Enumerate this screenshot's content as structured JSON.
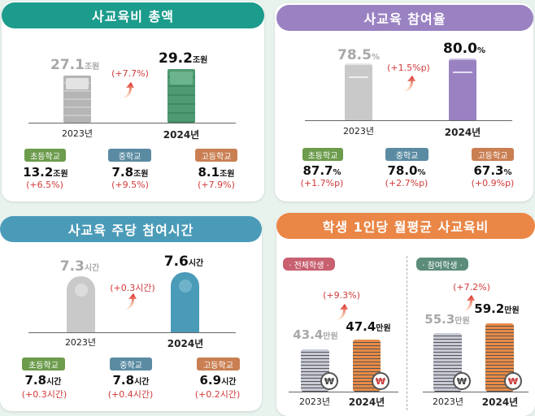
{
  "colors": {
    "teal": "#1c9c8c",
    "purple": "#9a82c2",
    "blue": "#4a9bb8",
    "orange": "#ea8646",
    "green_badge": "#6c9c4c",
    "blue_badge": "#5b8ba2",
    "orange_badge": "#c97f52",
    "red": "#d23a3a"
  },
  "total": {
    "title": "사교육비 총액",
    "y2023": {
      "value": "27.1",
      "unit": "조원",
      "year": "2023년",
      "icon": "money-bill-icon"
    },
    "y2024": {
      "value": "29.2",
      "unit": "조원",
      "year": "2024년",
      "icon": "money-bill-icon"
    },
    "change": "(+7.7%)",
    "schools": [
      {
        "label": "초등학교",
        "value": "13.2",
        "unit": "조원",
        "change": "(+6.5%)"
      },
      {
        "label": "중학교",
        "value": "7.8",
        "unit": "조원",
        "change": "(+9.5%)"
      },
      {
        "label": "고등학교",
        "value": "8.1",
        "unit": "조원",
        "change": "(+7.9%)"
      }
    ]
  },
  "rate": {
    "title": "사교육 참여율",
    "y2023": {
      "value": "78.5",
      "unit": "%",
      "year": "2023년",
      "icon": "notebook-icon"
    },
    "y2024": {
      "value": "80.0",
      "unit": "%",
      "year": "2024년",
      "icon": "notebook-icon"
    },
    "change": "(+1.5%p)",
    "schools": [
      {
        "label": "초등학교",
        "value": "87.7",
        "unit": "%",
        "change": "(+1.7%p)"
      },
      {
        "label": "중학교",
        "value": "78.0",
        "unit": "%",
        "change": "(+2.7%p)"
      },
      {
        "label": "고등학교",
        "value": "67.3",
        "unit": "%",
        "change": "(+0.9%p)"
      }
    ]
  },
  "hours": {
    "title": "사교육 주당 참여시간",
    "y2023": {
      "value": "7.3",
      "unit": "시간",
      "year": "2023년",
      "icon": "alarm-clock-icon"
    },
    "y2024": {
      "value": "7.6",
      "unit": "시간",
      "year": "2024년",
      "icon": "alarm-clock-icon"
    },
    "change": "(+0.3시간)",
    "schools": [
      {
        "label": "초등학교",
        "value": "7.8",
        "unit": "시간",
        "change": "(+0.3시간)"
      },
      {
        "label": "중학교",
        "value": "7.8",
        "unit": "시간",
        "change": "(+0.4시간)"
      },
      {
        "label": "고등학교",
        "value": "6.9",
        "unit": "시간",
        "change": "(+0.2시간)"
      }
    ]
  },
  "monthly": {
    "title": "학생 1인당 월평균 사교육비",
    "all": {
      "label": "· 전체학생 ·",
      "y2023": {
        "value": "43.4",
        "unit": "만원",
        "year": "2023년"
      },
      "y2024": {
        "value": "47.4",
        "unit": "만원",
        "year": "2024년"
      },
      "change": "(+9.3%)"
    },
    "participants": {
      "label": "· 참여학생 ·",
      "y2023": {
        "value": "55.3",
        "unit": "만원",
        "year": "2023년"
      },
      "y2024": {
        "value": "59.2",
        "unit": "만원",
        "year": "2024년"
      },
      "change": "(+7.2%)"
    },
    "coin_symbol": "₩"
  }
}
